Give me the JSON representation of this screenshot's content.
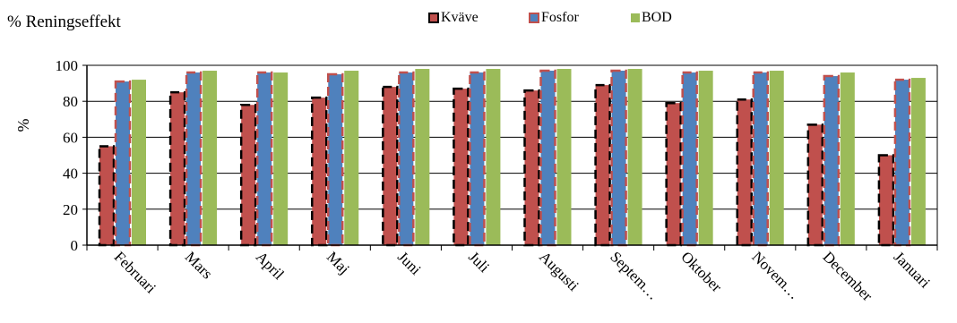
{
  "chart_data": {
    "type": "bar",
    "title": "% Reningseffekt",
    "ylabel": "%",
    "xlabel": "",
    "ylim": [
      0,
      100
    ],
    "yticks": [
      0,
      20,
      40,
      60,
      80,
      100
    ],
    "grid": true,
    "legend_position": "top",
    "categories": [
      "Februari",
      "Mars",
      "April",
      "Maj",
      "Juni",
      "Juli",
      "Augusti",
      "Septem…",
      "Oktober",
      "Novem…",
      "December",
      "Januari"
    ],
    "series": [
      {
        "name": "Kväve",
        "color": "#c0504d",
        "values": [
          55,
          85,
          78,
          82,
          88,
          87,
          86,
          89,
          79,
          81,
          67,
          50
        ]
      },
      {
        "name": "Fosfor",
        "color": "#4f81bd",
        "values": [
          91,
          96,
          96,
          95,
          96,
          96,
          97,
          97,
          96,
          96,
          94,
          92
        ]
      },
      {
        "name": "BOD",
        "color": "#9bbb59",
        "values": [
          92,
          97,
          96,
          97,
          98,
          98,
          98,
          98,
          97,
          97,
          96,
          93
        ]
      }
    ]
  }
}
